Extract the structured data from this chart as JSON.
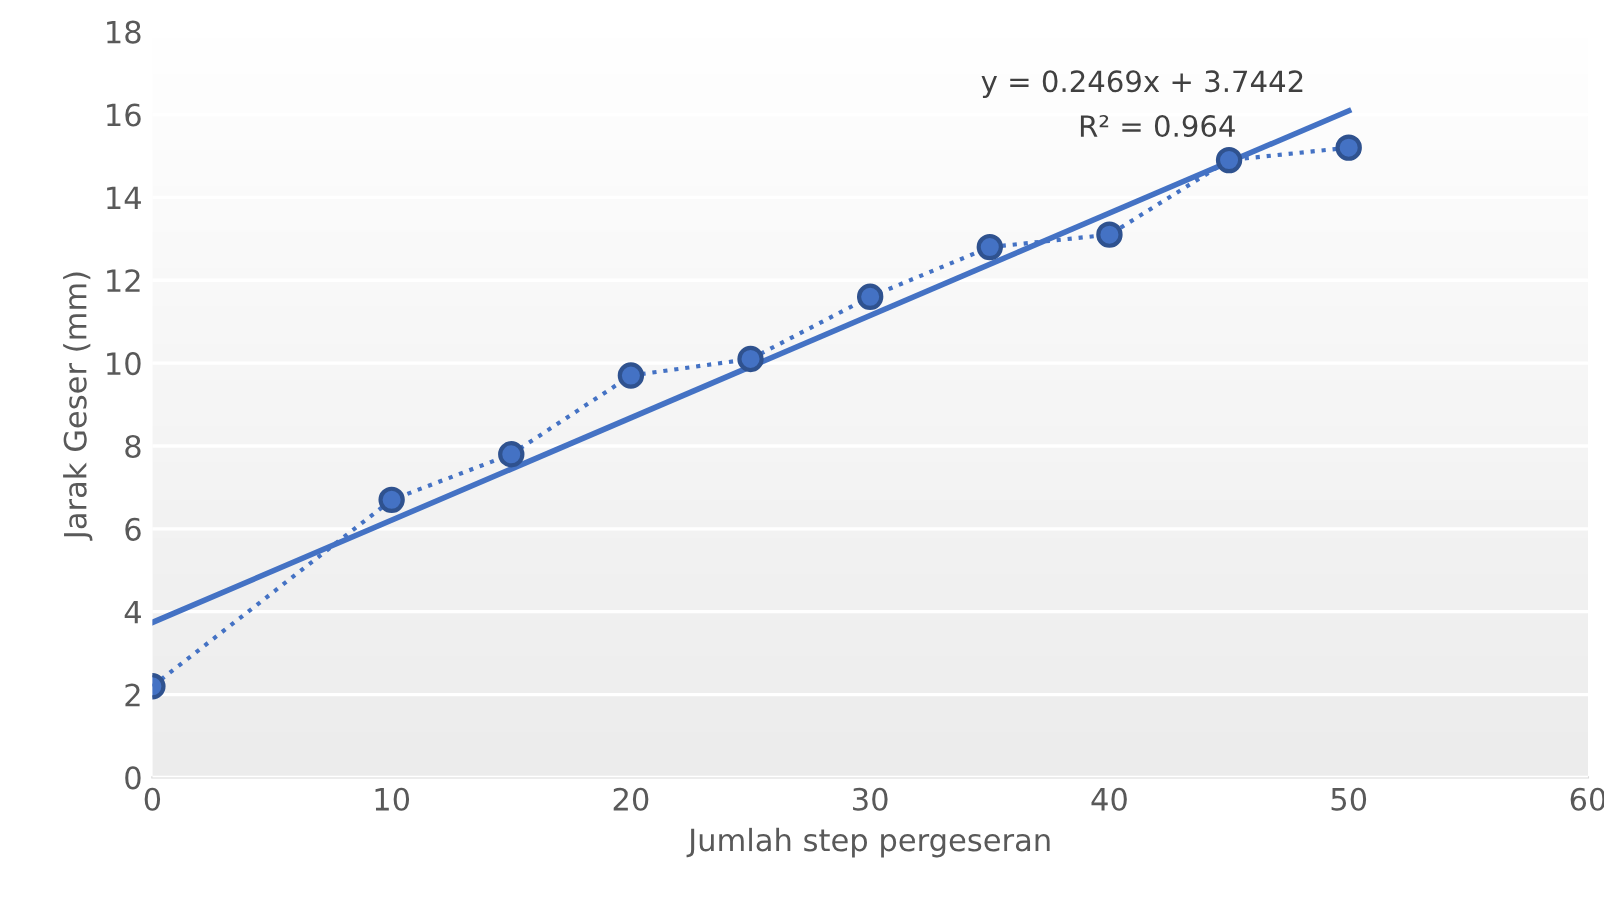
{
  "chart_data": {
    "type": "line",
    "xlabel": "Jumlah step pergeseran",
    "ylabel": "Jarak Geser (mm)",
    "xlim": [
      0,
      60
    ],
    "xticks": [
      0,
      10,
      20,
      30,
      40,
      50,
      60
    ],
    "ylim": [
      0,
      18
    ],
    "yticks": [
      0,
      2,
      4,
      6,
      8,
      10,
      12,
      14,
      16,
      18
    ],
    "grid": "y",
    "series": [
      {
        "color": "#4472c4",
        "marker": "circle",
        "line_style": "dotted",
        "x": [
          0,
          10,
          15,
          20,
          25,
          30,
          35,
          40,
          45,
          50
        ],
        "values": [
          2.2,
          6.7,
          7.8,
          9.7,
          10.1,
          11.6,
          12.8,
          13.1,
          14.9,
          15.2
        ]
      },
      {
        "type": "line",
        "color": "#4472c4",
        "marker": "none",
        "line_style": "solid",
        "x": [
          0,
          50
        ],
        "values": [
          3.74,
          16.09
        ]
      }
    ],
    "annotations": [
      "y = 0.2469x + 3.7442",
      "R² = 0.964"
    ]
  }
}
